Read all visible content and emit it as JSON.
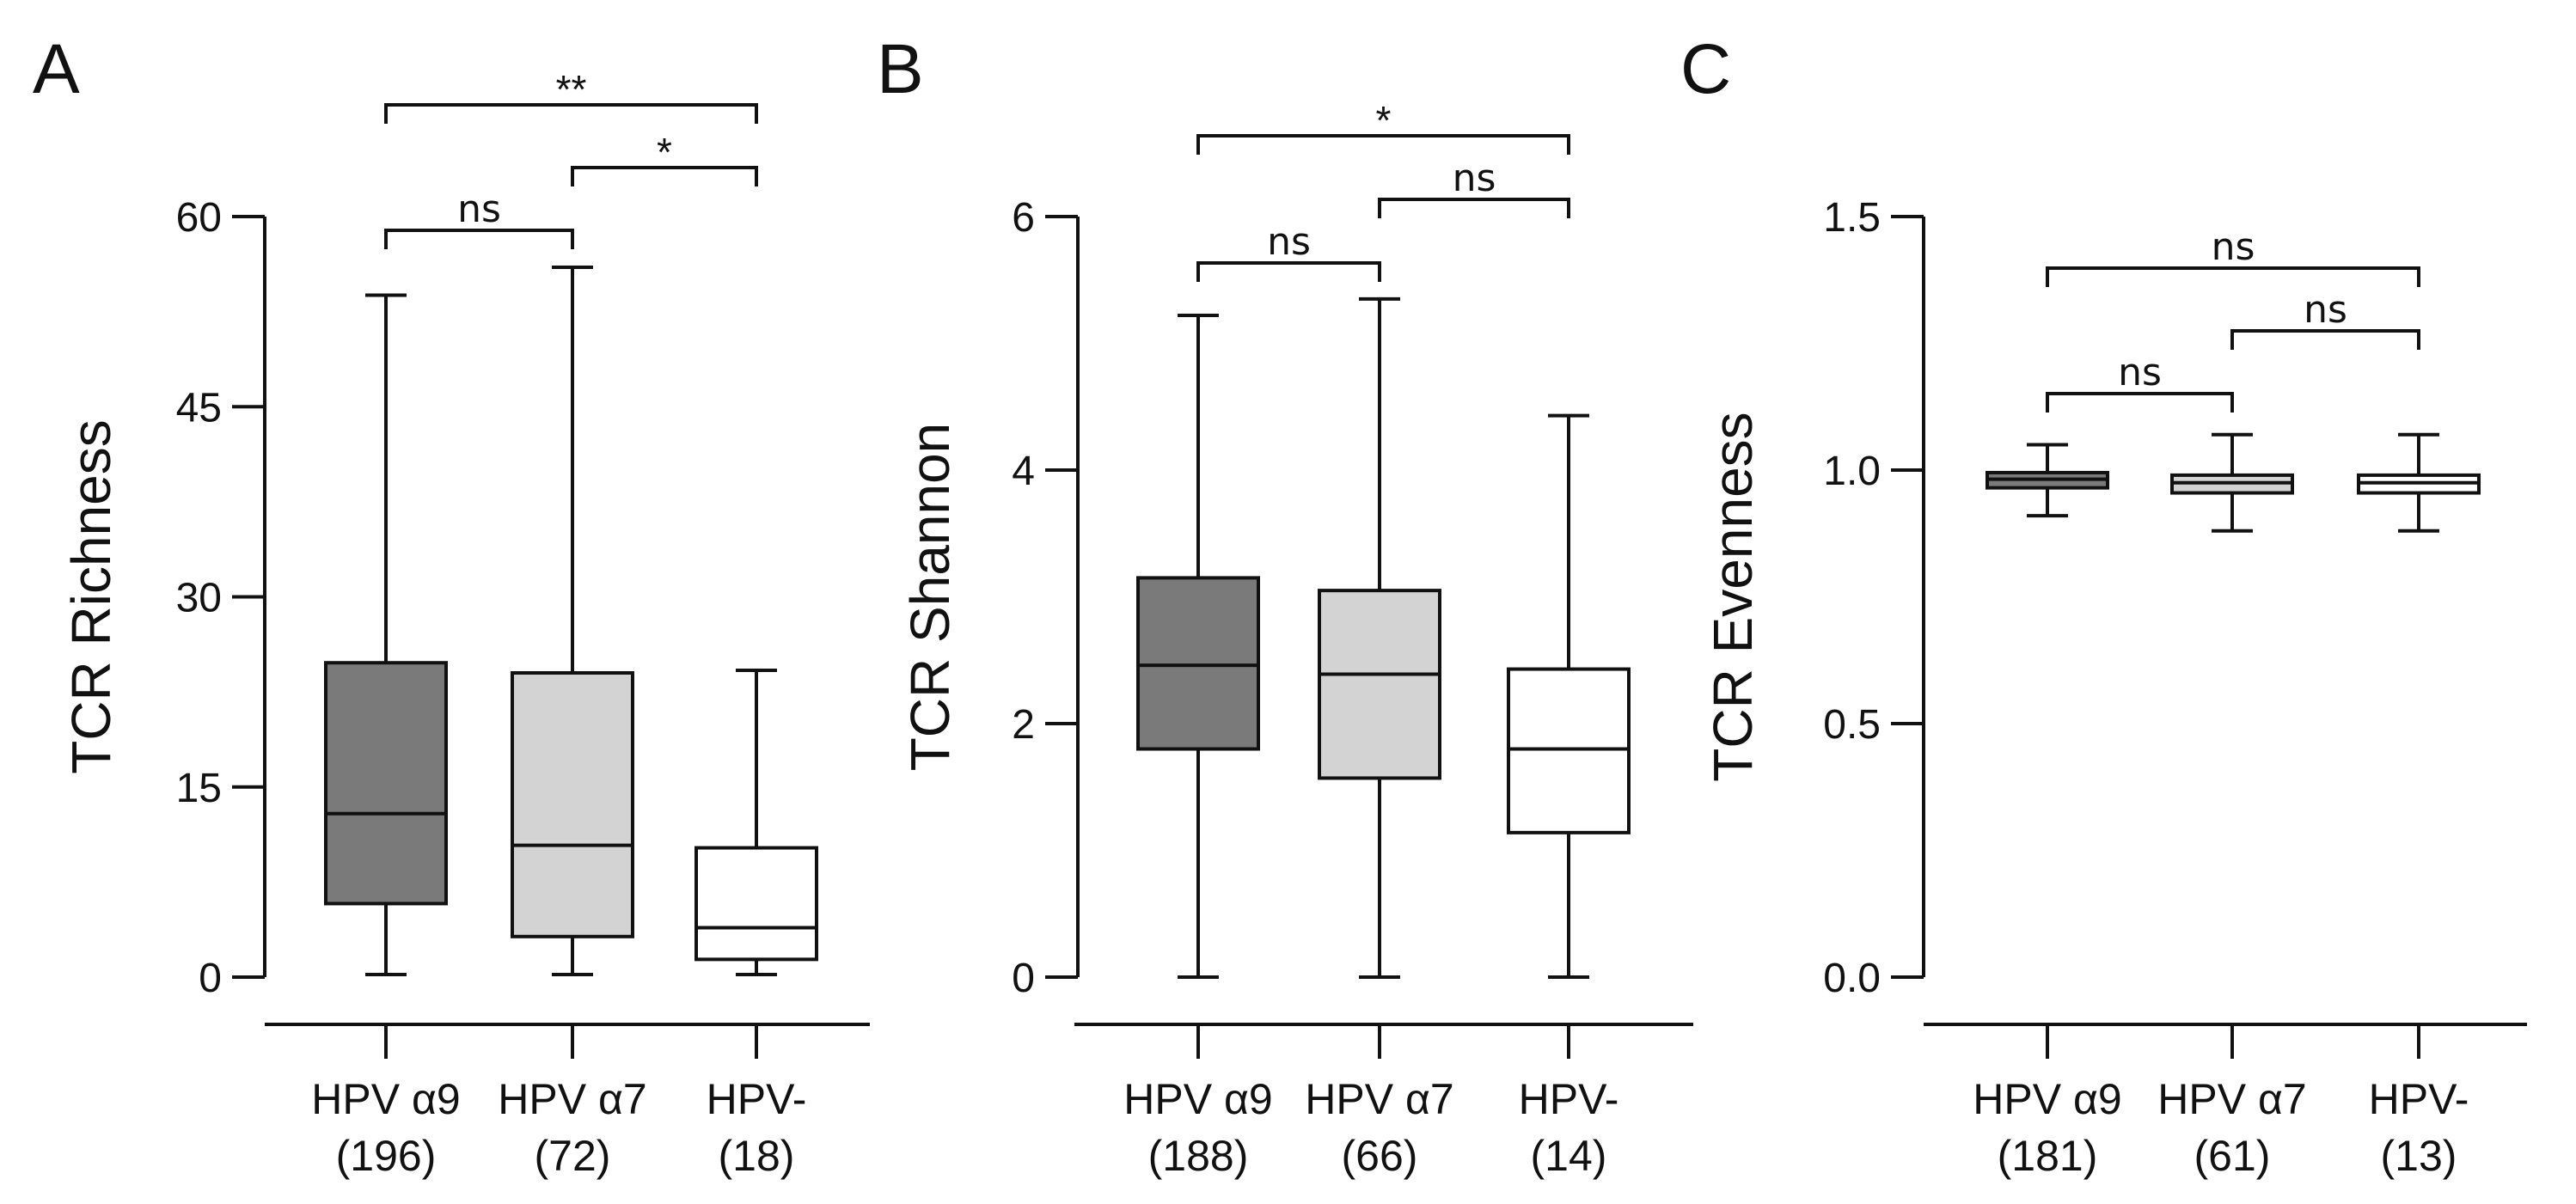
{
  "chart_data": [
    {
      "type": "boxplot",
      "panel": "A",
      "ylabel": "TCR Richness",
      "ylim": [
        0,
        60
      ],
      "yticks": [
        0,
        15,
        30,
        45,
        60
      ],
      "yticklabels": [
        "0",
        "15",
        "30",
        "45",
        "60"
      ],
      "groups": [
        {
          "name": "HPV α9",
          "n": "(196)",
          "fill": "#7a7a7a",
          "min": 0.2,
          "q1": 5.8,
          "median": 12.9,
          "q3": 24.8,
          "max": 53.8
        },
        {
          "name": "HPV α7",
          "n": "(72)",
          "fill": "#d3d3d3",
          "min": 0.2,
          "q1": 3.2,
          "median": 10.4,
          "q3": 24.0,
          "max": 56.0
        },
        {
          "name": "HPV-",
          "n": "(18)",
          "fill": "#ffffff",
          "min": 0.2,
          "q1": 1.4,
          "median": 3.9,
          "q3": 10.2,
          "max": 24.2
        }
      ],
      "comparisons": [
        {
          "from": 0,
          "to": 1,
          "label": "ns",
          "level": 0
        },
        {
          "from": 1,
          "to": 2,
          "label": "*",
          "level": 1
        },
        {
          "from": 0,
          "to": 2,
          "label": "**",
          "level": 2
        }
      ]
    },
    {
      "type": "boxplot",
      "panel": "B",
      "ylabel": "TCR Shannon",
      "ylim": [
        0,
        6
      ],
      "yticks": [
        0,
        2,
        4,
        6
      ],
      "yticklabels": [
        "0",
        "2",
        "4",
        "6"
      ],
      "groups": [
        {
          "name": "HPV α9",
          "n": "(188)",
          "fill": "#7a7a7a",
          "min": 0.0,
          "q1": 1.8,
          "median": 2.46,
          "q3": 3.15,
          "max": 5.22
        },
        {
          "name": "HPV α7",
          "n": "(66)",
          "fill": "#d3d3d3",
          "min": 0.0,
          "q1": 1.57,
          "median": 2.39,
          "q3": 3.05,
          "max": 5.35
        },
        {
          "name": "HPV-",
          "n": "(14)",
          "fill": "#ffffff",
          "min": 0.0,
          "q1": 1.14,
          "median": 1.8,
          "q3": 2.43,
          "max": 4.43
        }
      ],
      "comparisons": [
        {
          "from": 0,
          "to": 1,
          "label": "ns",
          "level": 0
        },
        {
          "from": 1,
          "to": 2,
          "label": "ns",
          "level": 1
        },
        {
          "from": 0,
          "to": 2,
          "label": "*",
          "level": 2
        }
      ]
    },
    {
      "type": "boxplot",
      "panel": "C",
      "ylabel": "TCR Evenness",
      "ylim": [
        0,
        1.5
      ],
      "yticks": [
        0,
        0.5,
        1.0,
        1.5
      ],
      "yticklabels": [
        "0.0",
        "0.5",
        "1.0",
        "1.5"
      ],
      "groups": [
        {
          "name": "HPV α9",
          "n": "(181)",
          "fill": "#7a7a7a",
          "min": 0.91,
          "q1": 0.965,
          "median": 0.982,
          "q3": 0.995,
          "max": 1.05
        },
        {
          "name": "HPV α7",
          "n": "(61)",
          "fill": "#d3d3d3",
          "min": 0.88,
          "q1": 0.955,
          "median": 0.975,
          "q3": 0.99,
          "max": 1.07
        },
        {
          "name": "HPV-",
          "n": "(13)",
          "fill": "#ffffff",
          "min": 0.88,
          "q1": 0.955,
          "median": 0.975,
          "q3": 0.99,
          "max": 1.07
        }
      ],
      "comparisons": [
        {
          "from": 0,
          "to": 1,
          "label": "ns",
          "level": 0
        },
        {
          "from": 1,
          "to": 2,
          "label": "ns",
          "level": 1
        },
        {
          "from": 0,
          "to": 2,
          "label": "ns",
          "level": 2
        }
      ]
    }
  ]
}
